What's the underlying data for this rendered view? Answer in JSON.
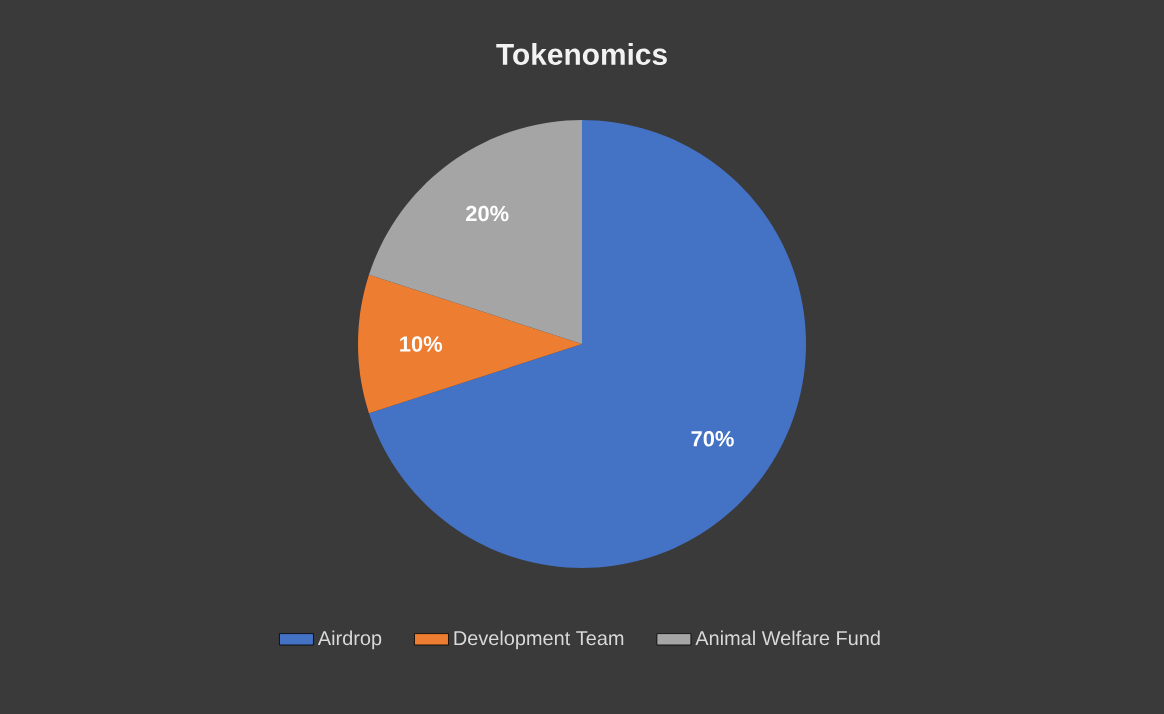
{
  "chart_data": {
    "type": "pie",
    "title": "Tokenomics",
    "categories": [
      "Airdrop",
      "Development Team",
      "Animal Welfare Fund"
    ],
    "values": [
      70,
      10,
      20
    ],
    "colors": [
      "#4472c4",
      "#ed7d31",
      "#a5a5a5"
    ],
    "value_labels": [
      "70%",
      "10%",
      "20%"
    ],
    "legend": "bottom"
  }
}
